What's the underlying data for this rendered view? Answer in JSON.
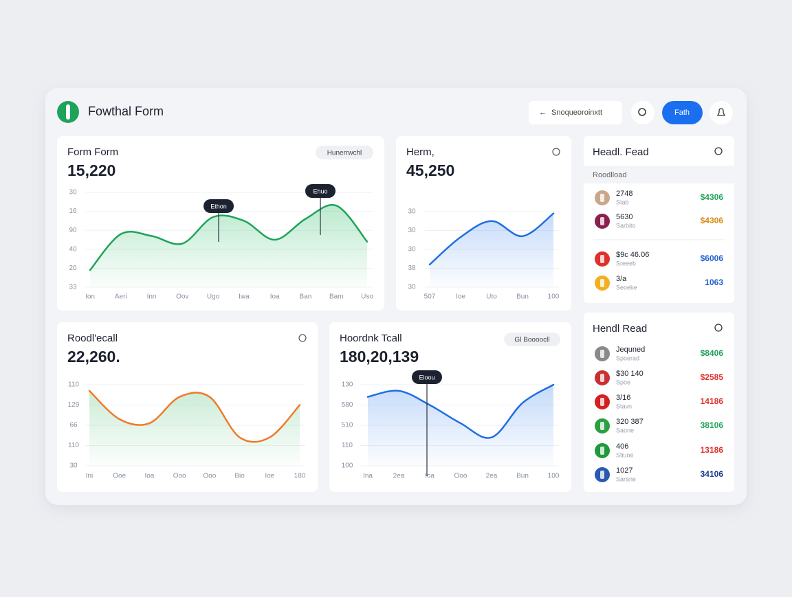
{
  "header": {
    "title": "Fowthal Form",
    "search_placeholder": "Snoqueoroinxtt",
    "button": "Fath"
  },
  "charts": [
    {
      "type": "line",
      "title": "Form Form",
      "value": "15,220",
      "badge": "Hunerrwchl",
      "tooltips": [
        "Ethon",
        "Ehuo"
      ],
      "color": "#1fa35a",
      "area_color": "#3cc173",
      "categories": [
        "Ion",
        "Aeri",
        "Inn",
        "Oov",
        "Ugo",
        "Iwa",
        "Ioa",
        "Ban",
        "Bam",
        "Uso"
      ],
      "values": [
        0.9,
        2.8,
        2.7,
        2.3,
        3.7,
        3.5,
        2.5,
        3.6,
        4.3,
        2.4
      ],
      "ylim": [
        0,
        5
      ],
      "yticks": [
        {
          "value": 0,
          "label": "33"
        },
        {
          "value": 1,
          "label": "20"
        },
        {
          "value": 2,
          "label": "40"
        },
        {
          "value": 3,
          "label": "90"
        },
        {
          "value": 4,
          "label": "16"
        },
        {
          "value": 5,
          "label": "30"
        }
      ]
    },
    {
      "type": "line",
      "title": "Herm,",
      "value": "45,250",
      "tooltips": [],
      "color": "#1f6fe0",
      "area_color": "#5b97f0",
      "categories": [
        "507",
        "Ioe",
        "Uto",
        "Bun",
        "100"
      ],
      "values": [
        1.2,
        2.65,
        3.5,
        2.7,
        3.9
      ],
      "ylim": [
        0,
        4
      ],
      "yticks": [
        {
          "value": 0,
          "label": "30"
        },
        {
          "value": 1,
          "label": "38"
        },
        {
          "value": 2,
          "label": "30 "
        },
        {
          "value": 3,
          "label": "30  "
        },
        {
          "value": 4,
          "label": "30   "
        }
      ]
    },
    {
      "type": "line",
      "title": "Roodl'ecall",
      "value": "22,260.",
      "tooltips": [],
      "color": "#f07a2a",
      "area_color": "#6cc98a",
      "categories": [
        "Ini",
        "Ooe",
        "Ioa",
        "Ooo",
        "Ooo",
        "Bio",
        "Ioe",
        "180"
      ],
      "values": [
        3.7,
        2.3,
        2.1,
        3.4,
        3.4,
        1.4,
        1.4,
        3.0
      ],
      "ylim": [
        0,
        4
      ],
      "yticks": [
        {
          "value": 0,
          "label": "30"
        },
        {
          "value": 1,
          "label": "110"
        },
        {
          "value": 2,
          "label": "66"
        },
        {
          "value": 3,
          "label": "129"
        },
        {
          "value": 4,
          "label": "110 "
        }
      ]
    },
    {
      "type": "line",
      "title": "Hoordnk Tcall",
      "value": "180,20,139",
      "badge": "Gl Boooocll",
      "tooltips": [
        "Eloou"
      ],
      "color": "#1f6fe0",
      "area_color": "#5b97f0",
      "categories": [
        "Ina",
        "2ea",
        "Ioa",
        "Ooo",
        "2ea",
        "Bun",
        "100"
      ],
      "values": [
        3.4,
        3.7,
        3.0,
        2.1,
        1.4,
        3.1,
        4.0
      ],
      "ylim": [
        0,
        4
      ],
      "yticks": [
        {
          "value": 0,
          "label": "100"
        },
        {
          "value": 1,
          "label": "110"
        },
        {
          "value": 2,
          "label": "510"
        },
        {
          "value": 3,
          "label": "580"
        },
        {
          "value": 4,
          "label": "130"
        }
      ]
    }
  ],
  "lists": [
    {
      "title": "Headl. Fead",
      "subtitle": "Roodlload",
      "rows": [
        {
          "name": "2748",
          "sub": "Stab",
          "value": "$4306",
          "color": "#1fa35a",
          "icon": "#c9a88a"
        },
        {
          "name": "5630",
          "sub": "Sarbito",
          "value": "$4306",
          "color": "#d98a10",
          "icon": "#8a2050"
        },
        {
          "name": "$9c 46.06",
          "sub": "Sreeeb",
          "value": "$6006",
          "color": "#1f5fd0",
          "icon": "#e0302a"
        },
        {
          "name": "3/a",
          "sub": "Seoeke",
          "value": "1063",
          "color": "#1f5fd0",
          "icon": "#f2b020"
        }
      ]
    },
    {
      "title": "Hendl Read",
      "rows": [
        {
          "name": "Jequned",
          "sub": "Spoerad",
          "value": "$8406",
          "color": "#1fa35a",
          "icon": "#8a8a8a"
        },
        {
          "name": "$30 140",
          "sub": "Spoe",
          "value": "$2585",
          "color": "#e0302a",
          "icon": "#c93030"
        },
        {
          "name": "3/16",
          "sub": "Stavn",
          "value": "14186",
          "color": "#e0302a",
          "icon": "#d42020"
        },
        {
          "name": "320 387",
          "sub": "Saone",
          "value": "38106",
          "color": "#1fa35a",
          "icon": "#2aa040"
        },
        {
          "name": "406",
          "sub": "Stiuoe",
          "value": "13186",
          "color": "#e0302a",
          "icon": "#1f9a3a"
        },
        {
          "name": "1027",
          "sub": "Sarane",
          "value": "34106",
          "color": "#1a3a8a",
          "icon": "#2a5ab0"
        }
      ]
    }
  ]
}
